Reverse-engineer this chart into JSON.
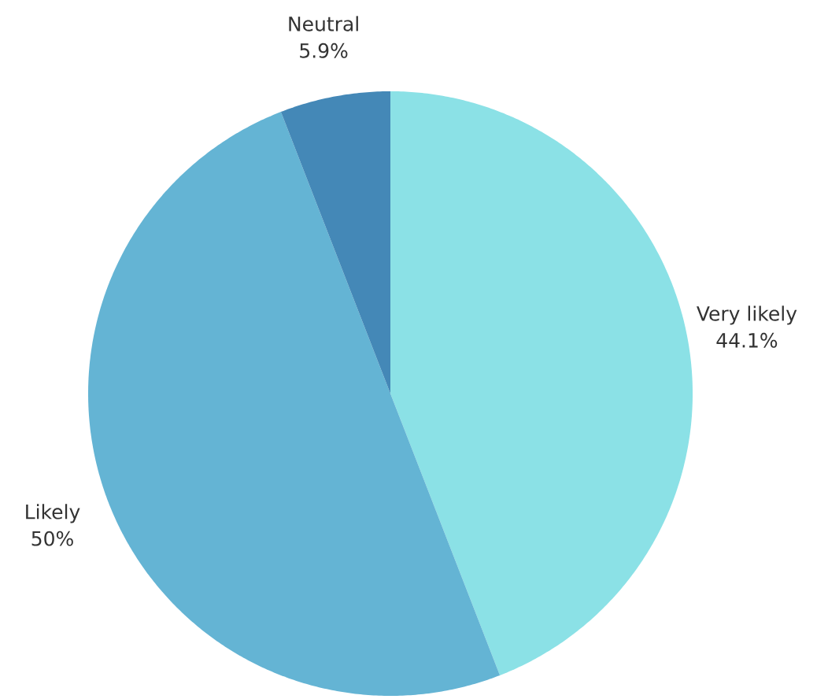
{
  "chart_data": {
    "type": "pie",
    "categories": [
      "Very likely",
      "Likely",
      "Neutral"
    ],
    "values": [
      44.1,
      50,
      5.9
    ],
    "colors": [
      "#8be1e6",
      "#64b4d4",
      "#4488b7"
    ],
    "value_labels": [
      "44.1%",
      "50%",
      "5.9%"
    ]
  }
}
